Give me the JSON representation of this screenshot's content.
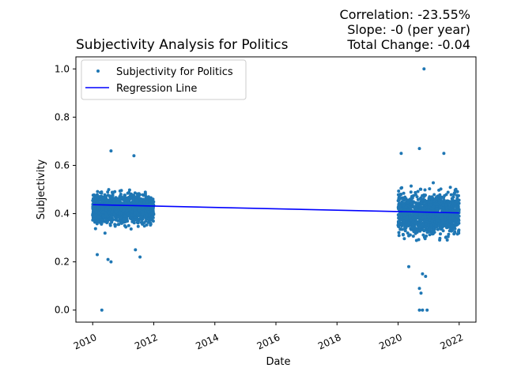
{
  "chart_data": {
    "type": "scatter",
    "title": "Subjectivity Analysis for Politics",
    "annotation": {
      "correlation": "Correlation: -23.55%",
      "slope": "Slope: -0 (per year)",
      "total_change": "Total Change: -0.04"
    },
    "xlabel": "Date",
    "ylabel": "Subjectivity",
    "xlim": [
      2009.45,
      2022.55
    ],
    "ylim": [
      -0.05,
      1.05
    ],
    "x_ticks": [
      "2010",
      "2012",
      "2014",
      "2016",
      "2018",
      "2020",
      "2022"
    ],
    "y_ticks": [
      "0.0",
      "0.2",
      "0.4",
      "0.6",
      "0.8",
      "1.0"
    ],
    "legend": {
      "placement": "top-left",
      "entries": [
        "Subjectivity for Politics",
        "Regression Line"
      ]
    },
    "colors": {
      "points": "#1f77b4",
      "regression": "#0000ff"
    },
    "series": [
      {
        "name": "Subjectivity for Politics",
        "kind": "scatter",
        "clusters": [
          {
            "x_range": [
              2010.0,
              2012.0
            ],
            "y_typical": [
              0.33,
              0.52
            ],
            "y_center": 0.42
          },
          {
            "x_range": [
              2020.0,
              2022.0
            ],
            "y_typical": [
              0.27,
              0.53
            ],
            "y_center": 0.4
          }
        ],
        "outliers": [
          {
            "x": 2010.3,
            "y": 0.0
          },
          {
            "x": 2010.5,
            "y": 0.21
          },
          {
            "x": 2010.6,
            "y": 0.2
          },
          {
            "x": 2010.15,
            "y": 0.23
          },
          {
            "x": 2010.6,
            "y": 0.66
          },
          {
            "x": 2011.35,
            "y": 0.64
          },
          {
            "x": 2011.4,
            "y": 0.25
          },
          {
            "x": 2011.55,
            "y": 0.22
          },
          {
            "x": 2020.1,
            "y": 0.65
          },
          {
            "x": 2020.35,
            "y": 0.18
          },
          {
            "x": 2020.7,
            "y": 0.67
          },
          {
            "x": 2020.85,
            "y": 1.0
          },
          {
            "x": 2020.7,
            "y": 0.0
          },
          {
            "x": 2020.8,
            "y": 0.0
          },
          {
            "x": 2020.95,
            "y": 0.0
          },
          {
            "x": 2020.7,
            "y": 0.09
          },
          {
            "x": 2020.75,
            "y": 0.07
          },
          {
            "x": 2020.8,
            "y": 0.15
          },
          {
            "x": 2020.9,
            "y": 0.14
          },
          {
            "x": 2021.5,
            "y": 0.65
          }
        ]
      },
      {
        "name": "Regression Line",
        "kind": "line",
        "x": [
          2010.0,
          2022.0
        ],
        "y": [
          0.437,
          0.403
        ]
      }
    ]
  }
}
